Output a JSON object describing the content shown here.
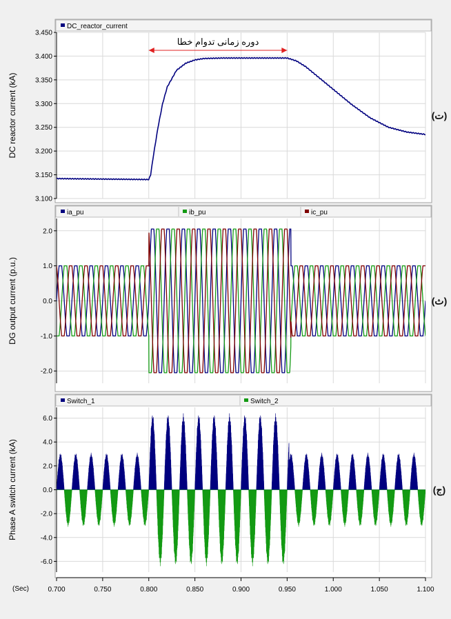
{
  "x_axis": {
    "unit_label": "(Sec)",
    "ticks": [
      "0.700",
      "0.750",
      "0.800",
      "0.850",
      "0.900",
      "0.950",
      "1.000",
      "1.050",
      "1.100"
    ],
    "range": [
      0.7,
      1.1
    ]
  },
  "colors": {
    "blue": "#00007f",
    "green": "#139a13",
    "red": "#7f0000",
    "annotation_red": "#e02020"
  },
  "chart_data": [
    {
      "id": "panel-dc-reactor",
      "type": "line",
      "ylabel": "DC reactor current (kA)",
      "panel_label": "(ت)",
      "ylim": [
        3.1,
        3.45
      ],
      "y_ticks": [
        "3.450",
        "3.400",
        "3.350",
        "3.300",
        "3.250",
        "3.200",
        "3.150",
        "3.100"
      ],
      "legend": [
        "DC_reactor_current"
      ],
      "annotation": {
        "text": "دوره زمانی تدوام خطا",
        "x_start": 0.8,
        "x_end": 0.95
      },
      "series": [
        {
          "name": "DC_reactor_current",
          "color": "blue",
          "x": [
            0.7,
            0.75,
            0.8,
            0.802,
            0.805,
            0.81,
            0.815,
            0.82,
            0.83,
            0.84,
            0.85,
            0.86,
            0.88,
            0.9,
            0.92,
            0.95,
            0.96,
            0.97,
            0.98,
            1.0,
            1.02,
            1.04,
            1.06,
            1.08,
            1.1
          ],
          "y": [
            3.142,
            3.141,
            3.14,
            3.15,
            3.19,
            3.25,
            3.3,
            3.335,
            3.37,
            3.385,
            3.392,
            3.395,
            3.396,
            3.396,
            3.396,
            3.396,
            3.39,
            3.378,
            3.362,
            3.33,
            3.298,
            3.27,
            3.25,
            3.24,
            3.235
          ]
        }
      ]
    },
    {
      "id": "panel-dg-output",
      "type": "line",
      "ylabel": "DG output current (p.u.)",
      "panel_label": "(ث)",
      "ylim": [
        -2.35,
        2.35
      ],
      "y_ticks": [
        "2.0",
        "1.0",
        "0.0",
        "-1.0",
        "-2.0"
      ],
      "legend": [
        "ia_pu",
        "ib_pu",
        "ic_pu"
      ],
      "frequency_hz": 60,
      "amplitude_normal": 1.0,
      "amplitude_fault": 2.05,
      "fault_window": [
        0.8,
        0.95
      ],
      "series": [
        {
          "name": "ia_pu",
          "color": "blue",
          "phase_deg": 0
        },
        {
          "name": "ib_pu",
          "color": "green",
          "phase_deg": -120
        },
        {
          "name": "ic_pu",
          "color": "red",
          "phase_deg": 120
        }
      ]
    },
    {
      "id": "panel-switch",
      "type": "area",
      "ylabel": "Phase A switch current (kA)",
      "panel_label": "(ج)",
      "ylim": [
        -6.9,
        6.9
      ],
      "y_ticks": [
        "6.0",
        "4.0",
        "2.0",
        "0.0",
        "-2.0",
        "-4.0",
        "-6.0"
      ],
      "legend": [
        "Switch_1",
        "Switch_2"
      ],
      "frequency_hz": 60,
      "peak_normal": 3.1,
      "peak_fault": 6.4,
      "fault_window": [
        0.8,
        0.95
      ],
      "series": [
        {
          "name": "Switch_1",
          "color": "blue",
          "polarity": "positive"
        },
        {
          "name": "Switch_2",
          "color": "green",
          "polarity": "negative"
        }
      ]
    }
  ]
}
